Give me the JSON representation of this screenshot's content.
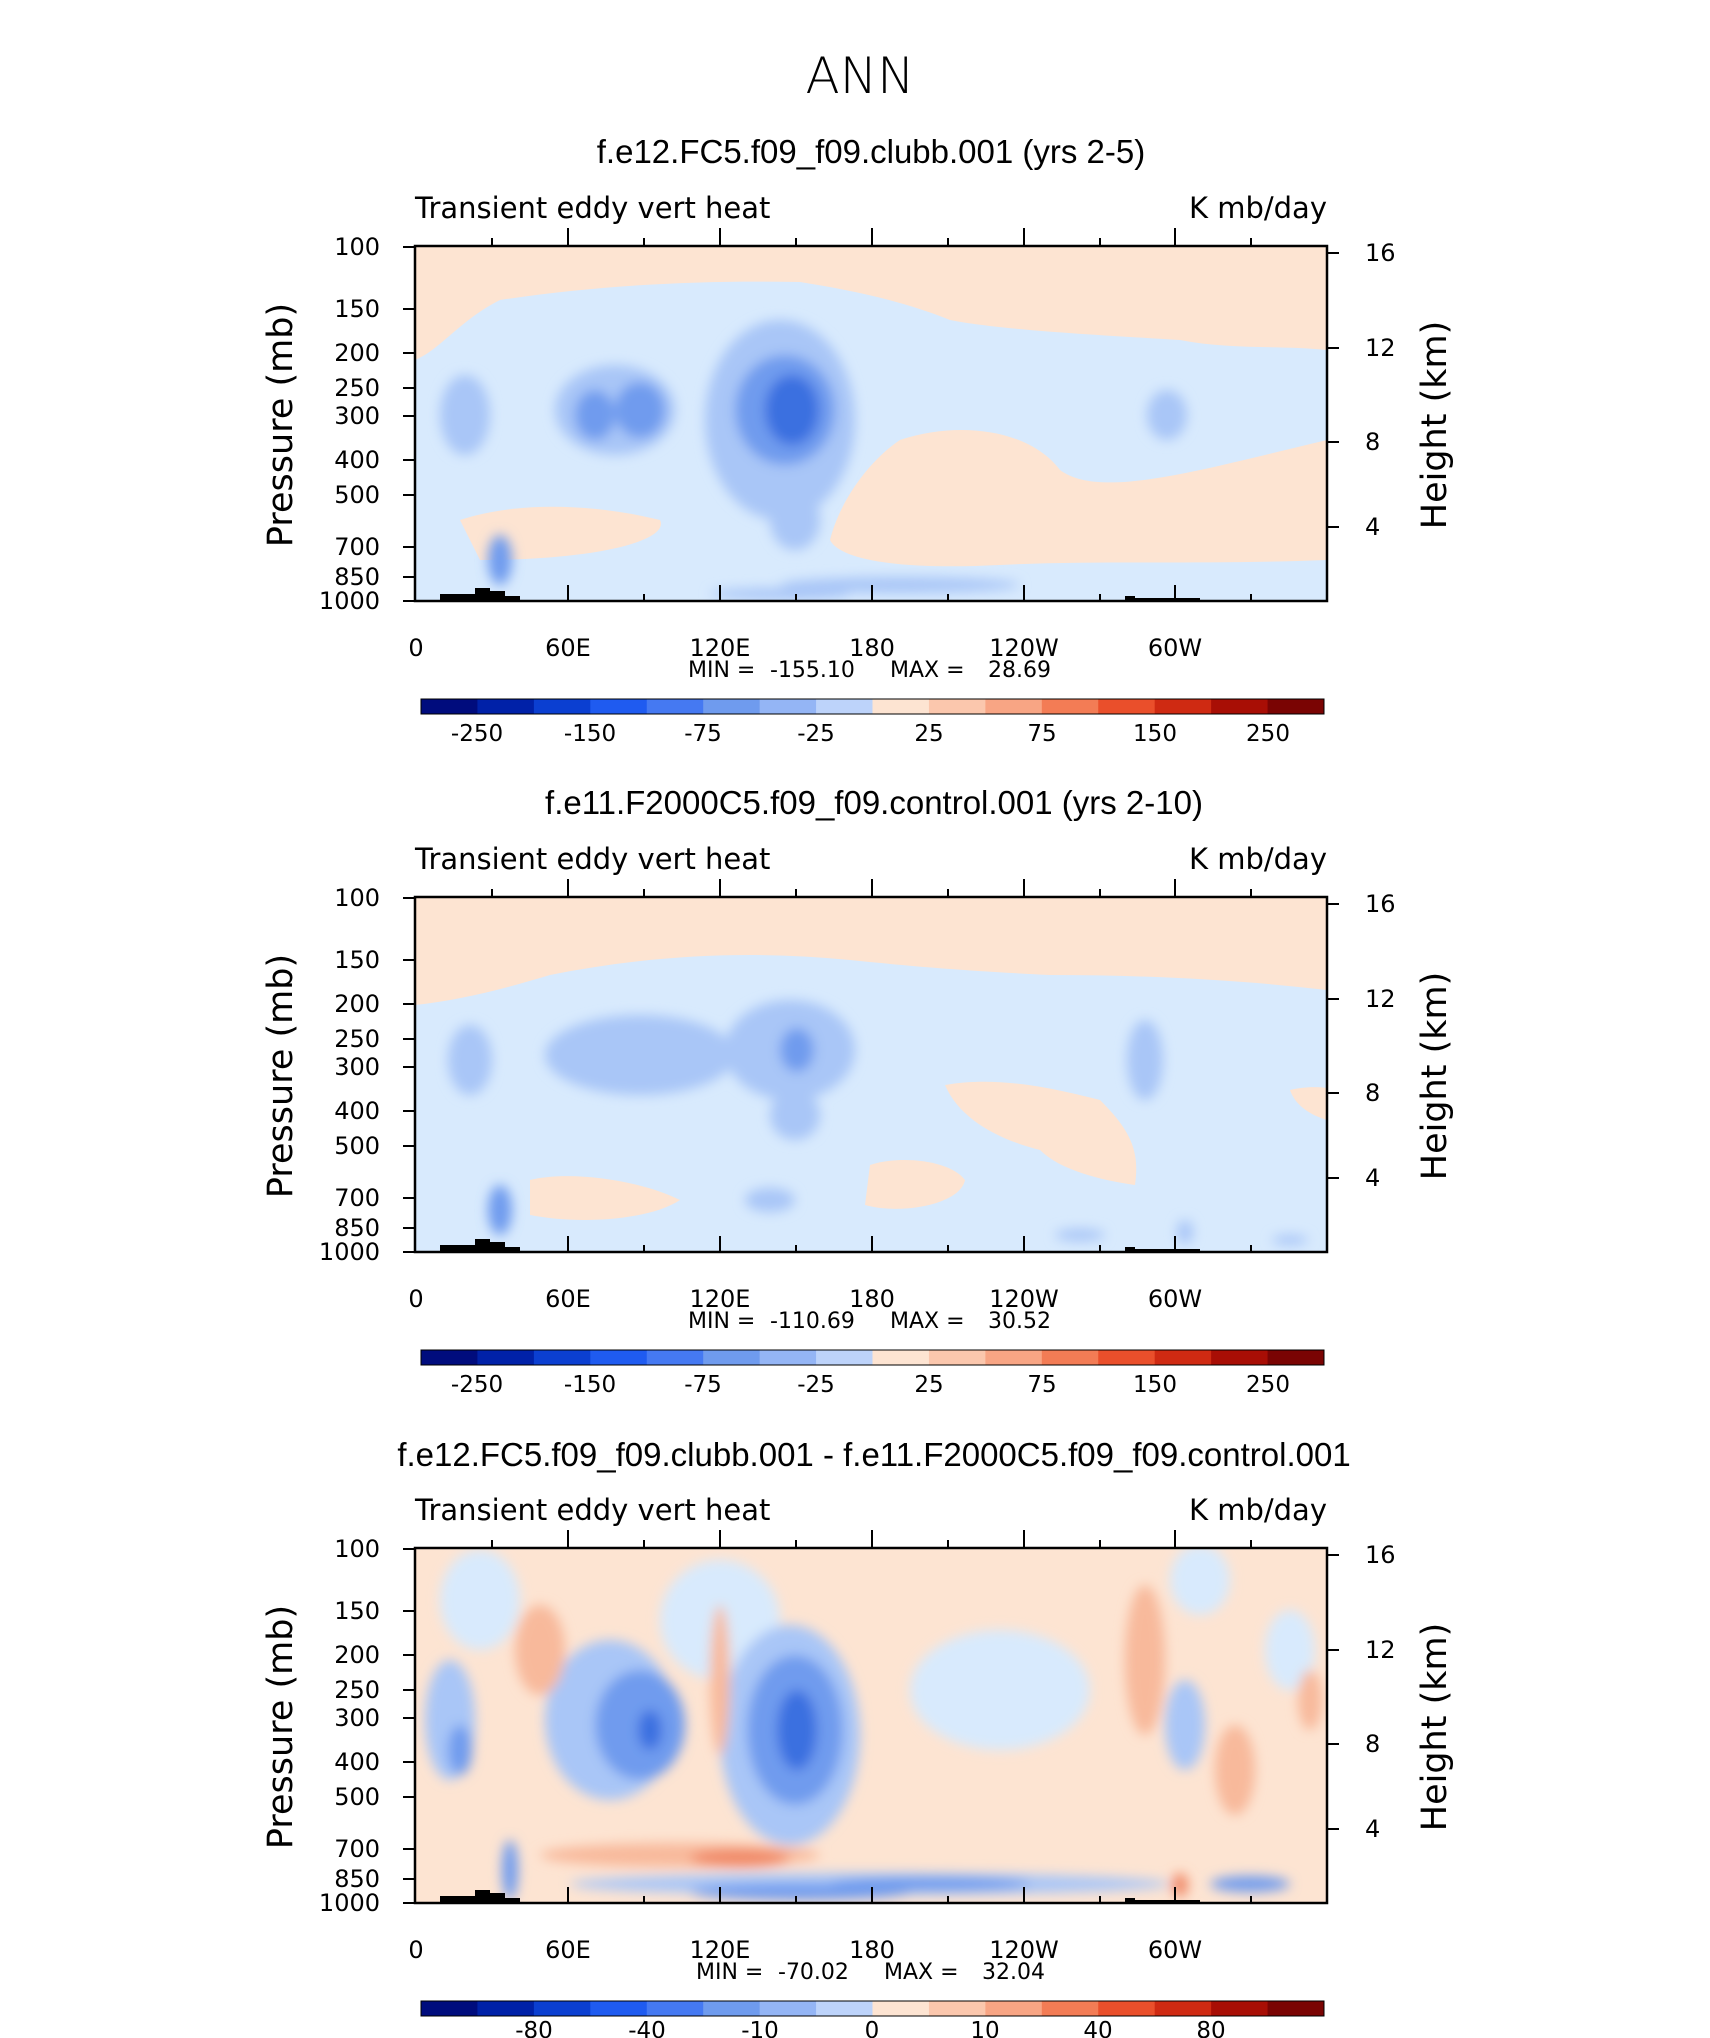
{
  "figure": {
    "title": "ANN"
  },
  "chart_data": [
    {
      "type": "heatmap",
      "title": "f.e12.FC5.f09_f09.clubb.001 (yrs 2-5)",
      "left_label": "Transient eddy vert heat",
      "right_label": "K mb/day",
      "ylabel": "Pressure (mb)",
      "ylabel_right": "Height (km)",
      "y_ticks": [
        "100",
        "150",
        "200",
        "250",
        "300",
        "400",
        "500",
        "700",
        "850",
        "1000"
      ],
      "y_ticks_right": [
        "16",
        "12",
        "8",
        "4"
      ],
      "x_ticks": [
        "0",
        "60E",
        "120E",
        "180",
        "120W",
        "60W"
      ],
      "min_label": "MIN =",
      "min": "-155.10",
      "max_label": "MAX =",
      "max": "28.69",
      "colorbar": {
        "labels": [
          "-250",
          "-150",
          "-75",
          "-25",
          "25",
          "75",
          "150",
          "250"
        ]
      },
      "features": [
        {
          "lon": 142,
          "p": 300,
          "value": -130
        },
        {
          "lon": 80,
          "p": 300,
          "value": -70
        },
        {
          "lon": 95,
          "p": 300,
          "value": -90
        },
        {
          "lon": 20,
          "p": 300,
          "value": -40
        },
        {
          "lon": 35,
          "p": 750,
          "value": -90
        },
        {
          "lon": 293,
          "p": 300,
          "value": -35
        },
        {
          "lon": 200,
          "p": 600,
          "value": 10
        }
      ]
    },
    {
      "type": "heatmap",
      "title": "f.e11.F2000C5.f09_f09.control.001 (yrs 2-10)",
      "left_label": "Transient eddy vert heat",
      "right_label": "K mb/day",
      "ylabel": "Pressure (mb)",
      "ylabel_right": "Height (km)",
      "y_ticks": [
        "100",
        "150",
        "200",
        "250",
        "300",
        "400",
        "500",
        "700",
        "850",
        "1000"
      ],
      "y_ticks_right": [
        "16",
        "12",
        "8",
        "4"
      ],
      "x_ticks": [
        "0",
        "60E",
        "120E",
        "180",
        "120W",
        "60W"
      ],
      "min_label": "MIN =",
      "min": "-110.69",
      "max_label": "MAX =",
      "max": "30.52",
      "colorbar": {
        "labels": [
          "-250",
          "-150",
          "-75",
          "-25",
          "25",
          "75",
          "150",
          "250"
        ]
      },
      "features": [
        {
          "lon": 75,
          "p": 280,
          "value": -40
        },
        {
          "lon": 145,
          "p": 270,
          "value": -75
        },
        {
          "lon": 20,
          "p": 300,
          "value": -35
        },
        {
          "lon": 35,
          "p": 750,
          "value": -80
        },
        {
          "lon": 287,
          "p": 300,
          "value": -35
        },
        {
          "lon": 230,
          "p": 500,
          "value": 10
        }
      ]
    },
    {
      "type": "heatmap",
      "title": "f.e12.FC5.f09_f09.clubb.001 - f.e11.F2000C5.f09_f09.control.001",
      "left_label": "Transient eddy vert heat",
      "right_label": "K mb/day",
      "ylabel": "Pressure (mb)",
      "ylabel_right": "Height (km)",
      "y_ticks": [
        "100",
        "150",
        "200",
        "250",
        "300",
        "400",
        "500",
        "700",
        "850",
        "1000"
      ],
      "y_ticks_right": [
        "16",
        "12",
        "8",
        "4"
      ],
      "x_ticks": [
        "0",
        "60E",
        "120E",
        "180",
        "120W",
        "60W"
      ],
      "min_label": "MIN =",
      "min": "-70.02",
      "max_label": "MAX =",
      "max": "32.04",
      "colorbar": {
        "labels": [
          "-80",
          "-40",
          "-10",
          "0",
          "10",
          "40",
          "80"
        ]
      },
      "features": [
        {
          "lon": 145,
          "p": 300,
          "value": -60
        },
        {
          "lon": 95,
          "p": 310,
          "value": -45
        },
        {
          "lon": 75,
          "p": 300,
          "value": -30
        },
        {
          "lon": 40,
          "p": 250,
          "value": 25
        },
        {
          "lon": 120,
          "p": 750,
          "value": 25
        },
        {
          "lon": 200,
          "p": 870,
          "value": -35
        },
        {
          "lon": 290,
          "p": 250,
          "value": 25
        },
        {
          "lon": 300,
          "p": 300,
          "value": -30
        }
      ]
    }
  ]
}
